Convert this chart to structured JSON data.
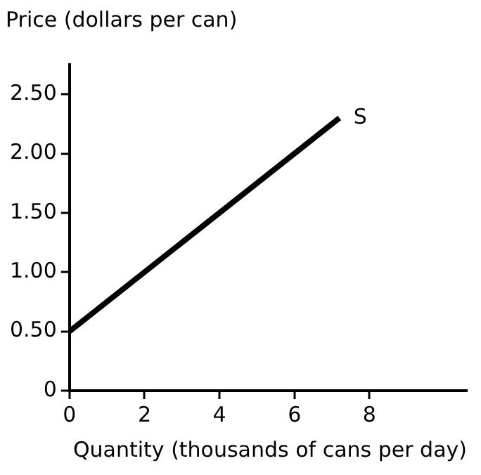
{
  "chart_data": {
    "type": "line",
    "title": "Price (dollars per can)",
    "xlabel": "Quantity (thousands of cans per day)",
    "x": [
      0,
      7.2
    ],
    "series": [
      {
        "name": "S",
        "color": "#000000",
        "values": [
          0.5,
          2.3
        ]
      }
    ],
    "xlim": [
      0,
      10.6
    ],
    "xticks": [
      0,
      2,
      4,
      6,
      8
    ],
    "ylim": [
      0,
      2.75
    ],
    "yticks": [
      0,
      {
        "value": 0.5,
        "label": "0.50"
      },
      {
        "value": 1,
        "label": "1.00"
      },
      {
        "value": 1.5,
        "label": "1.50"
      },
      {
        "value": 2,
        "label": "2.00"
      },
      {
        "value": 2.5,
        "label": "2.50"
      }
    ],
    "grid": false,
    "legend": false,
    "marker": "none",
    "line_style": "solid"
  }
}
